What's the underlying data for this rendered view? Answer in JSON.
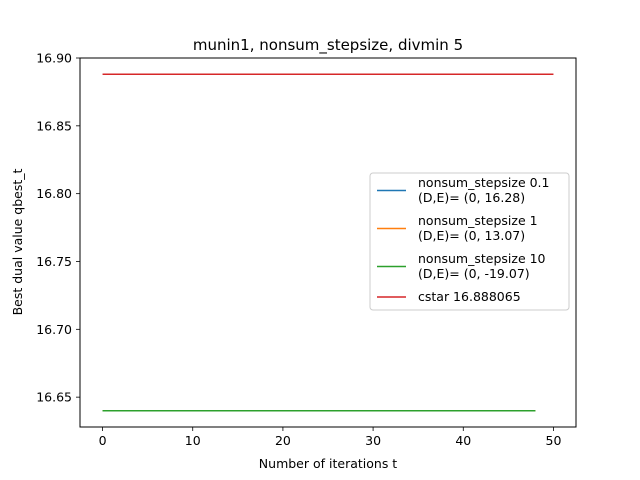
{
  "chart_data": {
    "type": "line",
    "title": "munin1, nonsum_stepsize, divmin 5",
    "xlabel": "Number of iterations t",
    "ylabel": "Best dual value qbest_t",
    "xlim": [
      -2.5,
      52.5
    ],
    "ylim": [
      16.628,
      16.9
    ],
    "xticks": [
      0,
      10,
      20,
      30,
      40,
      50
    ],
    "yticks": [
      16.65,
      16.7,
      16.75,
      16.8,
      16.85,
      16.9
    ],
    "xtick_labels": [
      "0",
      "10",
      "20",
      "30",
      "40",
      "50"
    ],
    "ytick_labels": [
      "16.65",
      "16.70",
      "16.75",
      "16.80",
      "16.85",
      "16.90"
    ],
    "grid": false,
    "legend_position": "center-right",
    "series": [
      {
        "name_lines": [
          "nonsum_stepsize 0.1",
          "(D,E)= (0, 16.28)"
        ],
        "color": "#1f77b4",
        "x": [
          0,
          48
        ],
        "y": [
          16.64,
          16.64
        ]
      },
      {
        "name_lines": [
          "nonsum_stepsize 1",
          "(D,E)= (0, 13.07)"
        ],
        "color": "#ff7f0e",
        "x": [
          0,
          48
        ],
        "y": [
          16.64,
          16.64
        ]
      },
      {
        "name_lines": [
          "nonsum_stepsize 10",
          "(D,E)= (0, -19.07)"
        ],
        "color": "#2ca02c",
        "x": [
          0,
          48
        ],
        "y": [
          16.64,
          16.64
        ]
      },
      {
        "name_lines": [
          "cstar 16.888065"
        ],
        "color": "#d62728",
        "x": [
          0,
          50
        ],
        "y": [
          16.888065,
          16.888065
        ]
      }
    ]
  }
}
